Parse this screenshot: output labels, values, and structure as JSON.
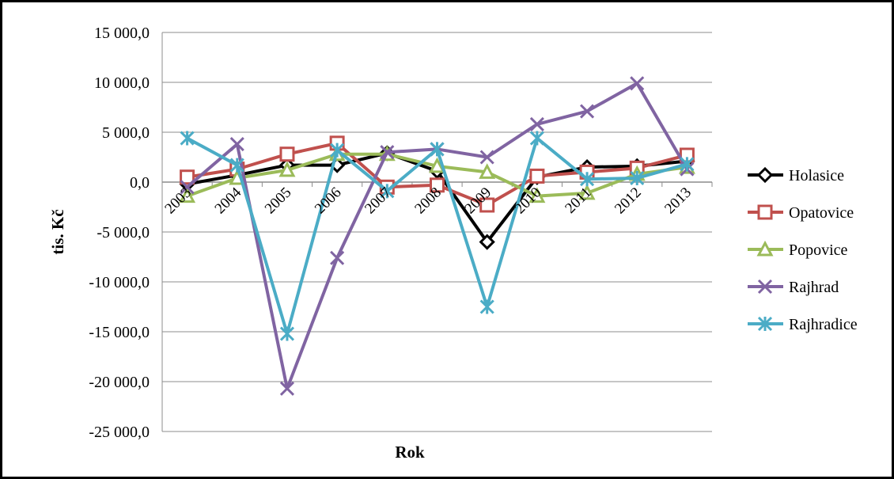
{
  "chart_data": {
    "type": "line",
    "title": "",
    "xlabel": "Rok",
    "ylabel": "tis. Kč",
    "ylim": [
      -25000,
      15000
    ],
    "y_ticks": [
      15000,
      10000,
      5000,
      0,
      -5000,
      -10000,
      -15000,
      -20000,
      -25000
    ],
    "y_tick_labels": [
      "15 000,0",
      "10 000,0",
      "5 000,0",
      "0,0",
      "-5 000,0",
      "-10 000,0",
      "-15 000,0",
      "-20 000,0",
      "-25 000,0"
    ],
    "categories": [
      "2003",
      "2004",
      "2005",
      "2006",
      "2007",
      "2008",
      "2009",
      "2010",
      "2011",
      "2012",
      "2013"
    ],
    "grid": true,
    "legend_position": "right",
    "series": [
      {
        "name": "Holasice",
        "color": "#000000",
        "marker": "diamond",
        "values": [
          -200,
          700,
          1700,
          1700,
          2900,
          1100,
          -6000,
          500,
          1500,
          1600,
          2100
        ]
      },
      {
        "name": "Opatovice",
        "color": "#C0504D",
        "marker": "square",
        "values": [
          500,
          1300,
          2800,
          3900,
          -500,
          -300,
          -2300,
          600,
          1000,
          1400,
          2700
        ]
      },
      {
        "name": "Popovice",
        "color": "#9BBB59",
        "marker": "triangle",
        "values": [
          -1400,
          400,
          1200,
          2800,
          2800,
          1600,
          1000,
          -1400,
          -1100,
          800,
          1500
        ]
      },
      {
        "name": "Rajhrad",
        "color": "#8064A2",
        "marker": "x",
        "values": [
          -500,
          3800,
          -20700,
          -7600,
          3000,
          3300,
          2500,
          5800,
          7100,
          9900,
          1300
        ]
      },
      {
        "name": "Rajhradice",
        "color": "#4BACC6",
        "marker": "asterisk",
        "values": [
          4400,
          1700,
          -15200,
          3200,
          -900,
          3300,
          -12500,
          4400,
          300,
          400,
          1800
        ]
      }
    ]
  }
}
